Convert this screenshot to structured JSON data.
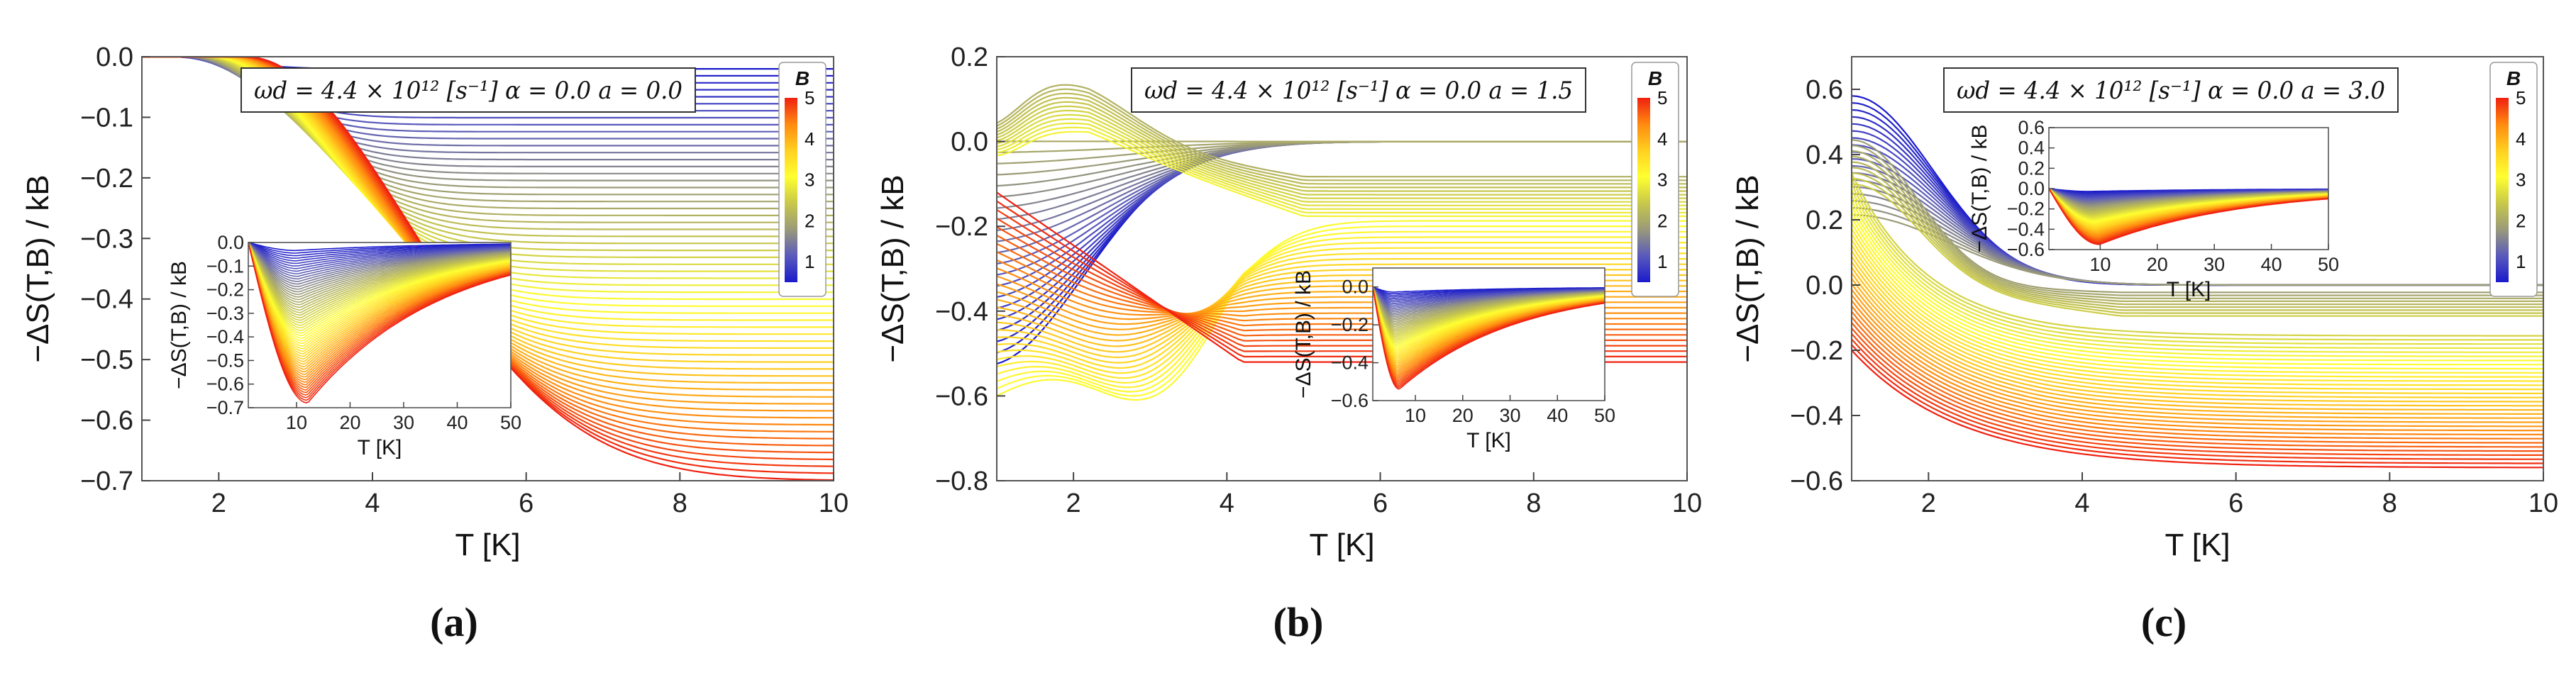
{
  "figure": {
    "background": "#ffffff"
  },
  "colorbar": {
    "title": "B",
    "ticks": [
      "1",
      "2",
      "3",
      "4",
      "5"
    ],
    "stops": [
      "#1a1acc",
      "#5a5abc",
      "#9a9a7a",
      "#c8c84a",
      "#ffff30",
      "#ffd020",
      "#ff8a10",
      "#f02010"
    ]
  },
  "chart_data": [
    {
      "type": "line",
      "panel_label": "(a)",
      "annotation": "ωd = 4.4 × 10¹² [s⁻¹]   α = 0.0   a = 0.0",
      "xlabel": "T [K]",
      "ylabel": "−ΔS(T,B) / kB",
      "xlim": [
        1,
        10
      ],
      "ylim": [
        -0.7,
        0.0
      ],
      "xticks": [
        "2",
        "4",
        "6",
        "8",
        "10"
      ],
      "xtick_values": [
        2,
        4,
        6,
        8,
        10
      ],
      "yticks": [
        "0.0",
        "−0.1",
        "−0.2",
        "−0.3",
        "−0.4",
        "−0.5",
        "−0.6",
        "−0.7"
      ],
      "ytick_values": [
        0.0,
        -0.1,
        -0.2,
        -0.3,
        -0.4,
        -0.5,
        -0.6,
        -0.7
      ],
      "series_B_range": [
        0.5,
        5
      ],
      "series_count": 60,
      "family": "a0",
      "inset": {
        "xlabel": "T [K]",
        "ylabel": "−ΔS(T,B) / kB",
        "xlim": [
          1,
          50
        ],
        "ylim": [
          -0.7,
          0.0
        ],
        "xticks": [
          "10",
          "20",
          "30",
          "40",
          "50"
        ],
        "xtick_values": [
          10,
          20,
          30,
          40,
          50
        ],
        "yticks": [
          "0.0",
          "−0.1",
          "−0.2",
          "−0.3",
          "−0.4",
          "−0.5",
          "−0.6",
          "−0.7"
        ],
        "ytick_values": [
          0.0,
          -0.1,
          -0.2,
          -0.3,
          -0.4,
          -0.5,
          -0.6,
          -0.7
        ],
        "min_at_T": 11,
        "min_value": -0.68
      }
    },
    {
      "type": "line",
      "panel_label": "(b)",
      "annotation": "ωd = 4.4 × 10¹² [s⁻¹]   α = 0.0   a = 1.5",
      "xlabel": "T [K]",
      "ylabel": "−ΔS(T,B) / kB",
      "xlim": [
        1,
        10
      ],
      "ylim": [
        -0.8,
        0.2
      ],
      "xticks": [
        "2",
        "4",
        "6",
        "8",
        "10"
      ],
      "xtick_values": [
        2,
        4,
        6,
        8,
        10
      ],
      "yticks": [
        "0.2",
        "0.0",
        "−0.2",
        "−0.4",
        "−0.6",
        "−0.8"
      ],
      "ytick_values": [
        0.2,
        0.0,
        -0.2,
        -0.4,
        -0.6,
        -0.8
      ],
      "series_B_range": [
        0.5,
        5
      ],
      "series_count": 60,
      "family": "a15",
      "inset": {
        "xlabel": "T [K]",
        "ylabel": "−ΔS(T,B) / kB",
        "xlim": [
          1,
          50
        ],
        "ylim": [
          -0.6,
          0.1
        ],
        "xticks": [
          "10",
          "20",
          "30",
          "40",
          "50"
        ],
        "xtick_values": [
          10,
          20,
          30,
          40,
          50
        ],
        "yticks": [
          "0.0",
          "−0.2",
          "−0.4",
          "−0.6"
        ],
        "ytick_values": [
          0.0,
          -0.2,
          -0.4,
          -0.6
        ],
        "min_at_T": 6,
        "min_value": -0.54
      }
    },
    {
      "type": "line",
      "panel_label": "(c)",
      "annotation": "ωd = 4.4 × 10¹² [s⁻¹]   α = 0.0   a = 3.0",
      "xlabel": "T [K]",
      "ylabel": "−ΔS(T,B) / kB",
      "xlim": [
        1,
        10
      ],
      "ylim": [
        -0.6,
        0.7
      ],
      "xticks": [
        "2",
        "4",
        "6",
        "8",
        "10"
      ],
      "xtick_values": [
        2,
        4,
        6,
        8,
        10
      ],
      "yticks": [
        "0.6",
        "0.4",
        "0.2",
        "0.0",
        "−0.2",
        "−0.4",
        "−0.6"
      ],
      "ytick_values": [
        0.6,
        0.4,
        0.2,
        0.0,
        -0.2,
        -0.4,
        -0.6
      ],
      "series_B_range": [
        0.5,
        5
      ],
      "series_count": 60,
      "family": "a30",
      "inset": {
        "xlabel": "T [K]",
        "ylabel": "−ΔS(T,B) / kB",
        "xlim": [
          1,
          50
        ],
        "ylim": [
          -0.6,
          0.6
        ],
        "xticks": [
          "10",
          "20",
          "30",
          "40",
          "50"
        ],
        "xtick_values": [
          10,
          20,
          30,
          40,
          50
        ],
        "yticks": [
          "0.6",
          "0.4",
          "0.2",
          "0.0",
          "−0.2",
          "−0.4",
          "−0.6"
        ],
        "ytick_values": [
          0.6,
          0.4,
          0.2,
          0.0,
          -0.2,
          -0.4,
          -0.6
        ],
        "min_at_T": 9,
        "min_value": -0.55
      }
    }
  ]
}
